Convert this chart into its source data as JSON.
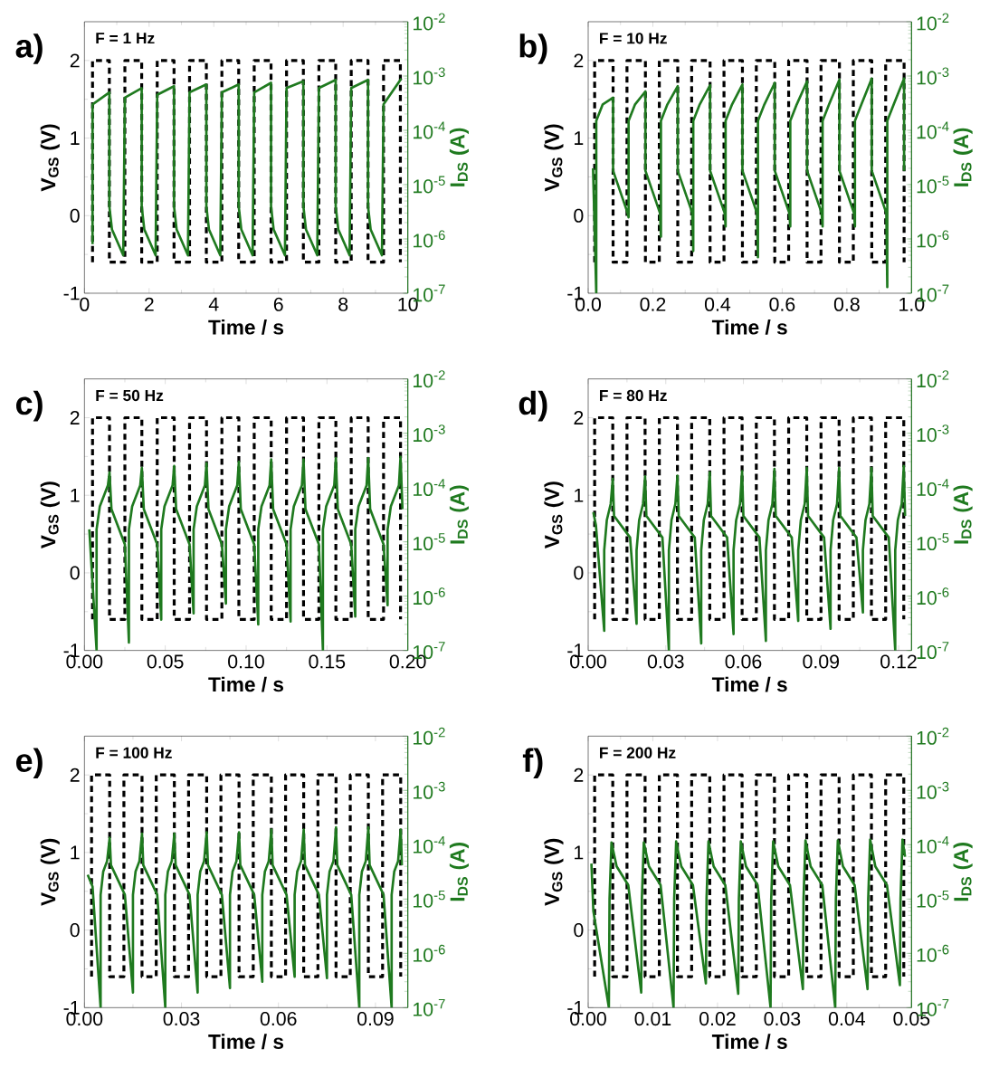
{
  "chart_data": [
    {
      "type": "line",
      "title": "a)",
      "annotations": [
        "F = 1 Hz"
      ],
      "xlabel": "Time / s",
      "ylabel": "V$_{GS}$ (V)",
      "y2label": "I$_{DS}$ (A)",
      "log": "y2",
      "xlim": [
        0,
        10
      ],
      "xticks": [
        0,
        2,
        4,
        6,
        8,
        10
      ],
      "ylim": [
        -1,
        2.5
      ],
      "yticks": [
        -1,
        0,
        1,
        2
      ],
      "y2lim": [
        1e-07,
        0.01
      ],
      "y2ticks": [
        {
          "value": 1e-07,
          "label": "10$^{-7}$"
        },
        {
          "value": 1e-06,
          "label": "10$^{-6}$"
        },
        {
          "value": 1e-05,
          "label": "10$^{-5}$"
        },
        {
          "value": 0.0001,
          "label": "10$^{-4}$"
        },
        {
          "value": 0.001,
          "label": "10$^{-3}$"
        },
        {
          "value": 0.01,
          "label": "10$^{-2}$"
        }
      ],
      "series": [
        {
          "color": "#000000",
          "line_style": "dashed",
          "x": [
            0.25,
            0.25,
            0.77,
            0.77,
            1.25,
            1.25,
            1.77,
            1.77,
            2.25,
            2.25,
            2.77,
            2.77,
            3.25,
            3.25,
            3.77,
            3.77,
            4.25,
            4.25,
            4.77,
            4.77,
            5.25,
            5.25,
            5.77,
            5.77,
            6.25,
            6.25,
            6.77,
            6.77,
            7.25,
            7.25,
            7.77,
            7.77,
            8.25,
            8.25,
            8.77,
            8.77,
            9.25,
            9.25,
            9.77,
            9.77
          ],
          "values": [
            -0.6,
            2,
            2,
            -0.6,
            -0.6,
            2,
            2,
            -0.6,
            -0.6,
            2,
            2,
            -0.6,
            -0.6,
            2,
            2,
            -0.6,
            -0.6,
            2,
            2,
            -0.6,
            -0.6,
            2,
            2,
            -0.6,
            -0.6,
            2,
            2,
            -0.6,
            -0.6,
            2,
            2,
            -0.6,
            -0.6,
            2,
            2,
            -0.6,
            -0.6,
            2,
            2,
            -0.6
          ]
        },
        {
          "color": "#1f7a1f",
          "line_style": "solid",
          "axis": "y2",
          "x": [
            0.25,
            0.25,
            0.77,
            0.77,
            0.85,
            1.2,
            1.25,
            1.77,
            1.77,
            1.85,
            2.2,
            2.25,
            2.77,
            2.77,
            2.85,
            3.2,
            3.25,
            3.77,
            3.77,
            3.85,
            4.2,
            4.25,
            4.77,
            4.77,
            4.85,
            5.2,
            5.25,
            5.77,
            5.77,
            5.85,
            6.2,
            6.25,
            6.77,
            6.77,
            6.85,
            7.2,
            7.25,
            7.77,
            7.77,
            7.85,
            8.2,
            8.25,
            8.77,
            8.77,
            8.85,
            9.2,
            9.25,
            9.8
          ],
          "values": [
            8e-07,
            0.0003,
            0.0005,
            4e-06,
            1.5e-06,
            5e-07,
            0.0004,
            0.0006,
            4e-06,
            1.5e-06,
            5e-07,
            0.00045,
            0.00065,
            4e-06,
            1.5e-06,
            5e-07,
            0.0005,
            0.0007,
            4e-06,
            1.5e-06,
            5e-07,
            0.0005,
            0.0007,
            4e-06,
            1.5e-06,
            5e-07,
            0.0005,
            0.00075,
            4e-06,
            1.5e-06,
            5e-07,
            0.0006,
            0.0008,
            4e-06,
            1.5e-06,
            5e-07,
            0.0006,
            0.00085,
            4e-06,
            1.5e-06,
            5e-07,
            0.0006,
            0.00085,
            4e-06,
            1.5e-06,
            5e-07,
            0.0003,
            0.0009
          ]
        }
      ]
    },
    {
      "type": "line",
      "title": "b)",
      "annotations": [
        "F = 10 Hz"
      ],
      "xlabel": "Time / s",
      "ylabel": "V$_{GS}$ (V)",
      "y2label": "I$_{DS}$ (A)",
      "log": "y2",
      "xlim": [
        0,
        1
      ],
      "xticks": [
        {
          "value": 0,
          "label": "0.0"
        },
        0.2,
        0.4,
        0.6,
        0.8,
        {
          "value": 1,
          "label": "1.0"
        }
      ],
      "ylim": [
        -1,
        2.5
      ],
      "yticks": [
        -1,
        0,
        1,
        2
      ],
      "y2lim": [
        1e-07,
        0.01
      ],
      "y2ticks": [
        {
          "value": 1e-07,
          "label": "10$^{-7}$"
        },
        {
          "value": 1e-06,
          "label": "10$^{-6}$"
        },
        {
          "value": 1e-05,
          "label": "10$^{-5}$"
        },
        {
          "value": 0.0001,
          "label": "10$^{-4}$"
        },
        {
          "value": 0.001,
          "label": "10$^{-3}$"
        },
        {
          "value": 0.01,
          "label": "10$^{-2}$"
        }
      ],
      "series": [
        {
          "color": "#000000",
          "line_style": "dashed",
          "x": [
            0.02,
            0.02,
            0.077,
            0.077,
            0.12,
            0.12,
            0.177,
            0.177,
            0.22,
            0.22,
            0.277,
            0.277,
            0.32,
            0.32,
            0.377,
            0.377,
            0.42,
            0.42,
            0.477,
            0.477,
            0.52,
            0.52,
            0.577,
            0.577,
            0.62,
            0.62,
            0.677,
            0.677,
            0.72,
            0.72,
            0.777,
            0.777,
            0.82,
            0.82,
            0.877,
            0.877,
            0.92,
            0.92,
            0.977,
            0.977
          ],
          "values": [
            -0.6,
            2,
            2,
            -0.6,
            -0.6,
            2,
            2,
            -0.6,
            -0.6,
            2,
            2,
            -0.6,
            -0.6,
            2,
            2,
            -0.6,
            -0.6,
            2,
            2,
            -0.6,
            -0.6,
            2,
            2,
            -0.6,
            -0.6,
            2,
            2,
            -0.6,
            -0.6,
            2,
            2,
            -0.6,
            -0.6,
            2,
            2,
            -0.6,
            -0.6,
            2,
            2,
            -0.6
          ]
        },
        {
          "color": "#1f7a1f",
          "line_style": "solid",
          "axis": "y2",
          "x": [
            0.015,
            0.025,
            0.025,
            0.045,
            0.077,
            0.077,
            0.122,
            0.125,
            0.125,
            0.145,
            0.177,
            0.177,
            0.222,
            0.225,
            0.225,
            0.245,
            0.277,
            0.277,
            0.322,
            0.325,
            0.325,
            0.345,
            0.377,
            0.377,
            0.422,
            0.425,
            0.425,
            0.445,
            0.477,
            0.477,
            0.522,
            0.525,
            0.525,
            0.545,
            0.577,
            0.577,
            0.622,
            0.625,
            0.625,
            0.645,
            0.677,
            0.677,
            0.722,
            0.725,
            0.725,
            0.745,
            0.777,
            0.777,
            0.822,
            0.825,
            0.825,
            0.845,
            0.877,
            0.877,
            0.922,
            0.925,
            0.925,
            0.945,
            0.977,
            0.977
          ],
          "values": [
            2e-05,
            1e-07,
            0.00015,
            0.0003,
            0.0004,
            1.8e-05,
            3e-06,
            2.5e-06,
            0.00015,
            0.0003,
            0.00052,
            1.8e-05,
            3e-06,
            1.1e-06,
            0.00015,
            0.0003,
            0.00065,
            1.8e-05,
            3e-06,
            6e-07,
            0.00015,
            0.0003,
            0.00068,
            1.8e-05,
            3e-06,
            1.7e-06,
            0.00015,
            0.0003,
            0.0007,
            1.8e-05,
            3e-06,
            4.6e-07,
            0.00015,
            0.0003,
            0.00075,
            1.8e-05,
            3e-06,
            1.7e-06,
            0.00015,
            0.0003,
            0.0008,
            1.8e-05,
            3e-06,
            1.7e-06,
            0.00015,
            0.0003,
            0.00086,
            1.8e-05,
            3e-06,
            1.7e-06,
            0.00015,
            0.0003,
            0.0009,
            1.8e-05,
            3e-06,
            1.3e-07,
            0.00015,
            0.0003,
            0.0009,
            1.8e-05
          ]
        }
      ]
    },
    {
      "type": "line",
      "title": "c)",
      "annotations": [
        "F = 50 Hz"
      ],
      "xlabel": "Time / s",
      "ylabel": "V$_{GS}$ (V)",
      "y2label": "I$_{DS}$ (A)",
      "log": "y2",
      "xlim": [
        0,
        0.2
      ],
      "xticks": [
        {
          "value": 0,
          "label": "0.00"
        },
        0.05,
        {
          "value": 0.1,
          "label": "0.10"
        },
        0.15,
        {
          "value": 0.2,
          "label": "0.20"
        }
      ],
      "ylim": [
        -1,
        2.5
      ],
      "yticks": [
        -1,
        0,
        1,
        2
      ],
      "y2lim": [
        1e-07,
        0.01
      ],
      "y2ticks": [
        {
          "value": 1e-07,
          "label": "10$^{-7}$"
        },
        {
          "value": 1e-06,
          "label": "10$^{-6}$"
        },
        {
          "value": 1e-05,
          "label": "10$^{-5}$"
        },
        {
          "value": 0.0001,
          "label": "10$^{-4}$"
        },
        {
          "value": 0.001,
          "label": "10$^{-3}$"
        },
        {
          "value": 0.01,
          "label": "10$^{-2}$"
        }
      ],
      "series": [
        {
          "color": "#000000",
          "line_style": "dashed",
          "x": [
            0.005,
            0.005,
            0.0155,
            0.0155,
            0.025,
            0.025,
            0.0355,
            0.0355,
            0.045,
            0.045,
            0.0555,
            0.0555,
            0.065,
            0.065,
            0.0755,
            0.0755,
            0.085,
            0.085,
            0.0955,
            0.0955,
            0.105,
            0.105,
            0.1155,
            0.1155,
            0.125,
            0.125,
            0.1355,
            0.1355,
            0.145,
            0.145,
            0.1555,
            0.1555,
            0.165,
            0.165,
            0.1755,
            0.1755,
            0.185,
            0.185,
            0.1955,
            0.1955
          ],
          "values": [
            -0.6,
            2,
            2,
            -0.6,
            -0.6,
            2,
            2,
            -0.6,
            -0.6,
            2,
            2,
            -0.6,
            -0.6,
            2,
            2,
            -0.6,
            -0.6,
            2,
            2,
            -0.6,
            -0.6,
            2,
            2,
            -0.6,
            -0.6,
            2,
            2,
            -0.6,
            -0.6,
            2,
            2,
            -0.6,
            -0.6,
            2,
            2,
            -0.6,
            -0.6,
            2,
            2,
            -0.6
          ]
        },
        {
          "color": "#1f7a1f",
          "line_style": "solid",
          "axis": "y2",
          "x": [
            0.003,
            0.0075,
            0.0075,
            0.0095,
            0.0145,
            0.0155,
            0.0167,
            0.025,
            0.0275,
            0.0275,
            0.0295,
            0.0345,
            0.0355,
            0.0367,
            0.045,
            0.0475,
            0.0475,
            0.0495,
            0.0545,
            0.0555,
            0.0567,
            0.065,
            0.0675,
            0.0675,
            0.0695,
            0.0745,
            0.0755,
            0.0767,
            0.085,
            0.0875,
            0.0875,
            0.0895,
            0.0945,
            0.0955,
            0.0967,
            0.105,
            0.1075,
            0.1075,
            0.1095,
            0.1145,
            0.1155,
            0.1167,
            0.125,
            0.1275,
            0.1275,
            0.1295,
            0.1345,
            0.1355,
            0.1367,
            0.145,
            0.1475,
            0.1475,
            0.1495,
            0.1545,
            0.1555,
            0.1567,
            0.165,
            0.1675,
            0.1675,
            0.1695,
            0.1745,
            0.1755,
            0.1767,
            0.185,
            0.1875,
            0.1875,
            0.1895,
            0.1945,
            0.1955,
            0.1967
          ],
          "values": [
            1.7e-05,
            1e-07,
            1.7e-05,
            4.5e-05,
            0.00011,
            0.00019,
            4e-05,
            9e-06,
            1.4e-07,
            1.7e-05,
            4.5e-05,
            0.00011,
            0.00023,
            4e-05,
            9e-06,
            3.7e-07,
            1.7e-05,
            4.5e-05,
            0.00011,
            0.00025,
            4e-05,
            9e-06,
            4.8e-07,
            1.7e-05,
            4.5e-05,
            0.00011,
            0.00028,
            4e-05,
            9e-06,
            7.3e-07,
            1.7e-05,
            4.5e-05,
            0.00011,
            0.0003,
            4e-05,
            9e-06,
            3e-07,
            1.7e-05,
            4.5e-05,
            0.00011,
            0.00033,
            4e-05,
            9e-06,
            3.4e-07,
            1.7e-05,
            4.5e-05,
            0.00011,
            0.00033,
            4e-05,
            9e-06,
            1e-07,
            1.7e-05,
            4.5e-05,
            0.00011,
            0.00035,
            4e-05,
            9e-06,
            4.2e-07,
            1.7e-05,
            4.5e-05,
            0.00011,
            0.00035,
            4e-05,
            9e-06,
            6.8e-07,
            1.7e-05,
            4.5e-05,
            0.00011,
            0.00037,
            4e-05
          ]
        }
      ]
    },
    {
      "type": "line",
      "title": "d)",
      "annotations": [
        "F = 80 Hz"
      ],
      "xlabel": "Time / s",
      "ylabel": "V$_{GS}$ (V)",
      "y2label": "I$_{DS}$ (A)",
      "log": "y2",
      "xlim": [
        0,
        0.125
      ],
      "xticks": [
        {
          "value": 0,
          "label": "0.00"
        },
        0.03,
        0.06,
        0.09,
        0.12
      ],
      "ylim": [
        -1,
        2.5
      ],
      "yticks": [
        -1,
        0,
        1,
        2
      ],
      "y2lim": [
        1e-07,
        0.01
      ],
      "y2ticks": [
        {
          "value": 1e-07,
          "label": "10$^{-7}$"
        },
        {
          "value": 1e-06,
          "label": "10$^{-6}$"
        },
        {
          "value": 1e-05,
          "label": "10$^{-5}$"
        },
        {
          "value": 0.0001,
          "label": "10$^{-4}$"
        },
        {
          "value": 0.001,
          "label": "10$^{-3}$"
        },
        {
          "value": 0.01,
          "label": "10$^{-2}$"
        }
      ],
      "series": [
        {
          "color": "#000000",
          "line_style": "dashed",
          "x": [
            0.0025,
            0.0025,
            0.0095,
            0.0095,
            0.015,
            0.015,
            0.022,
            0.022,
            0.0275,
            0.0275,
            0.0345,
            0.0345,
            0.04,
            0.04,
            0.047,
            0.047,
            0.0525,
            0.0525,
            0.0595,
            0.0595,
            0.065,
            0.065,
            0.072,
            0.072,
            0.0775,
            0.0775,
            0.0845,
            0.0845,
            0.09,
            0.09,
            0.097,
            0.097,
            0.1025,
            0.1025,
            0.1095,
            0.1095,
            0.115,
            0.115,
            0.122,
            0.122
          ],
          "values": [
            -0.6,
            2,
            2,
            -0.6,
            -0.6,
            2,
            2,
            -0.6,
            -0.6,
            2,
            2,
            -0.6,
            -0.6,
            2,
            2,
            -0.6,
            -0.6,
            2,
            2,
            -0.6,
            -0.6,
            2,
            2,
            -0.6,
            -0.6,
            2,
            2,
            -0.6,
            -0.6,
            2,
            2,
            -0.6,
            -0.6,
            2,
            2,
            -0.6,
            -0.6,
            2,
            2,
            -0.6
          ]
        },
        {
          "color": "#1f7a1f",
          "line_style": "solid",
          "axis": "y2",
          "x": [
            0.002,
            0.003,
            0.0062,
            0.0062,
            0.0072,
            0.0087,
            0.0095,
            0.01,
            0.0162,
            0.0187,
            0.0187,
            0.0197,
            0.0212,
            0.022,
            0.0225,
            0.0287,
            0.0312,
            0.0312,
            0.0322,
            0.0337,
            0.0345,
            0.035,
            0.0412,
            0.0437,
            0.0437,
            0.0447,
            0.0462,
            0.047,
            0.0475,
            0.0537,
            0.0562,
            0.0562,
            0.0572,
            0.0587,
            0.0595,
            0.06,
            0.0662,
            0.0687,
            0.0687,
            0.0697,
            0.0712,
            0.072,
            0.0725,
            0.0787,
            0.0812,
            0.0812,
            0.0822,
            0.0837,
            0.0845,
            0.085,
            0.0912,
            0.0937,
            0.0937,
            0.0947,
            0.0962,
            0.097,
            0.0975,
            0.1037,
            0.1062,
            0.1062,
            0.1072,
            0.1087,
            0.1095,
            0.11,
            0.1162,
            0.1187,
            0.1187,
            0.1197,
            0.1212,
            0.122,
            0.1225
          ],
          "values": [
            3.5e-05,
            2e-05,
            2.3e-07,
            7e-06,
            2.5e-05,
            5e-05,
            0.000145,
            3e-05,
            1.2e-05,
            3.1e-07,
            7e-06,
            2.5e-05,
            5e-05,
            0.00016,
            3e-05,
            1.2e-05,
            1e-07,
            7e-06,
            2.5e-05,
            5e-05,
            0.000165,
            3e-05,
            1.2e-05,
            1.35e-07,
            7e-06,
            2.5e-05,
            5e-05,
            0.00019,
            3e-05,
            1.2e-05,
            2e-07,
            7e-06,
            2.5e-05,
            5e-05,
            0.0002,
            3e-05,
            1.2e-05,
            1.5e-07,
            7e-06,
            2.5e-05,
            5e-05,
            0.00022,
            3e-05,
            1.2e-05,
            3.5e-07,
            7e-06,
            2.5e-05,
            5e-05,
            0.00023,
            3e-05,
            1.2e-05,
            2.5e-07,
            7e-06,
            2.5e-05,
            5e-05,
            0.00023,
            3e-05,
            1.2e-05,
            5e-07,
            7e-06,
            2.5e-05,
            5e-05,
            0.00023,
            3e-05,
            1.2e-05,
            1e-07,
            7e-06,
            2.5e-05,
            5e-05,
            0.00025,
            3e-05
          ]
        }
      ]
    },
    {
      "type": "line",
      "title": "e)",
      "annotations": [
        "F = 100 Hz"
      ],
      "xlabel": "Time / s",
      "ylabel": "V$_{GS}$ (V)",
      "y2label": "I$_{DS}$ (A)",
      "log": "y2",
      "xlim": [
        0,
        0.1
      ],
      "xticks": [
        {
          "value": 0,
          "label": "0.00"
        },
        0.03,
        0.06,
        0.09
      ],
      "ylim": [
        -1,
        2.5
      ],
      "yticks": [
        -1,
        0,
        1,
        2
      ],
      "y2lim": [
        1e-07,
        0.01
      ],
      "y2ticks": [
        {
          "value": 1e-07,
          "label": "10$^{-7}$"
        },
        {
          "value": 1e-06,
          "label": "10$^{-6}$"
        },
        {
          "value": 1e-05,
          "label": "10$^{-5}$"
        },
        {
          "value": 0.0001,
          "label": "10$^{-4}$"
        },
        {
          "value": 0.001,
          "label": "10$^{-3}$"
        },
        {
          "value": 0.01,
          "label": "10$^{-2}$"
        }
      ],
      "series": [
        {
          "color": "#000000",
          "line_style": "dashed",
          "x": [
            0.0022,
            0.0022,
            0.0078,
            0.0078,
            0.0122,
            0.0122,
            0.0178,
            0.0178,
            0.0222,
            0.0222,
            0.0278,
            0.0278,
            0.0322,
            0.0322,
            0.0378,
            0.0378,
            0.0422,
            0.0422,
            0.0478,
            0.0478,
            0.0522,
            0.0522,
            0.0578,
            0.0578,
            0.0622,
            0.0622,
            0.0678,
            0.0678,
            0.0722,
            0.0722,
            0.0778,
            0.0778,
            0.0822,
            0.0822,
            0.0878,
            0.0878,
            0.0922,
            0.0922,
            0.0978,
            0.0978
          ],
          "values": [
            -0.6,
            2,
            2,
            -0.6,
            -0.6,
            2,
            2,
            -0.6,
            -0.6,
            2,
            2,
            -0.6,
            -0.6,
            2,
            2,
            -0.6,
            -0.6,
            2,
            2,
            -0.6,
            -0.6,
            2,
            2,
            -0.6,
            -0.6,
            2,
            2,
            -0.6,
            -0.6,
            2,
            2,
            -0.6,
            -0.6,
            2,
            2,
            -0.6,
            -0.6,
            2,
            2,
            -0.6
          ]
        },
        {
          "color": "#1f7a1f",
          "line_style": "solid",
          "axis": "y2",
          "x": [
            0.001,
            0.0025,
            0.005,
            0.005,
            0.0058,
            0.007,
            0.0078,
            0.0082,
            0.0125,
            0.015,
            0.015,
            0.0158,
            0.017,
            0.0178,
            0.0182,
            0.0225,
            0.025,
            0.025,
            0.0258,
            0.027,
            0.0278,
            0.0282,
            0.0325,
            0.035,
            0.035,
            0.0358,
            0.037,
            0.0378,
            0.0382,
            0.0425,
            0.045,
            0.045,
            0.0458,
            0.047,
            0.0478,
            0.0482,
            0.0525,
            0.055,
            0.055,
            0.0558,
            0.057,
            0.0578,
            0.0582,
            0.0625,
            0.065,
            0.065,
            0.0658,
            0.067,
            0.0678,
            0.0682,
            0.0725,
            0.075,
            0.075,
            0.0758,
            0.077,
            0.0778,
            0.0782,
            0.0825,
            0.085,
            0.085,
            0.0858,
            0.087,
            0.0878,
            0.0882,
            0.0925,
            0.095,
            0.095,
            0.0958,
            0.097,
            0.0978,
            0.0982
          ],
          "values": [
            2.8e-05,
            1.7e-05,
            1e-07,
            1.2e-05,
            3.2e-05,
            5e-05,
            0.000135,
            4.2e-05,
            1.2e-05,
            1.9e-07,
            1.2e-05,
            3.2e-05,
            5e-05,
            0.00016,
            4.2e-05,
            1.2e-05,
            1e-07,
            1.2e-05,
            3.2e-05,
            5e-05,
            0.00016,
            4.2e-05,
            1.2e-05,
            1.9e-07,
            1.2e-05,
            3.2e-05,
            5e-05,
            0.00017,
            4.2e-05,
            1.2e-05,
            2.3e-07,
            1.2e-05,
            3.2e-05,
            5e-05,
            0.00017,
            4.2e-05,
            1.2e-05,
            3e-07,
            1.2e-05,
            3.2e-05,
            5e-05,
            0.00019,
            4.2e-05,
            1.2e-05,
            3.7e-07,
            1.2e-05,
            3.2e-05,
            5e-05,
            0.00019,
            4.2e-05,
            1.2e-05,
            3.5e-07,
            1.2e-05,
            3.2e-05,
            5e-05,
            0.00021,
            4.2e-05,
            1.2e-05,
            1e-07,
            1.2e-05,
            3.2e-05,
            5e-05,
            0.00021,
            4.2e-05,
            1.2e-05,
            1e-07,
            1.2e-05,
            3.2e-05,
            5e-05,
            0.00019,
            4.2e-05
          ]
        }
      ]
    },
    {
      "type": "line",
      "title": "f)",
      "annotations": [
        "F = 200 Hz"
      ],
      "xlabel": "Time / s",
      "ylabel": "V$_{GS}$ (V)",
      "y2label": "I$_{DS}$ (A)",
      "log": "y2",
      "xlim": [
        0,
        0.05
      ],
      "xticks": [
        {
          "value": 0,
          "label": "0.00"
        },
        0.01,
        0.02,
        0.03,
        0.04,
        0.05
      ],
      "ylim": [
        -1,
        2.5
      ],
      "yticks": [
        -1,
        0,
        1,
        2
      ],
      "y2lim": [
        1e-07,
        0.01
      ],
      "y2ticks": [
        {
          "value": 1e-07,
          "label": "10$^{-7}$"
        },
        {
          "value": 1e-06,
          "label": "10$^{-6}$"
        },
        {
          "value": 1e-05,
          "label": "10$^{-5}$"
        },
        {
          "value": 0.0001,
          "label": "10$^{-4}$"
        },
        {
          "value": 0.001,
          "label": "10$^{-3}$"
        },
        {
          "value": 0.01,
          "label": "10$^{-2}$"
        }
      ],
      "series": [
        {
          "color": "#000000",
          "line_style": "dashed",
          "x": [
            0.001,
            0.001,
            0.0038,
            0.0038,
            0.006,
            0.006,
            0.0088,
            0.0088,
            0.011,
            0.011,
            0.0138,
            0.0138,
            0.016,
            0.016,
            0.0188,
            0.0188,
            0.021,
            0.021,
            0.0238,
            0.0238,
            0.026,
            0.026,
            0.0288,
            0.0288,
            0.031,
            0.031,
            0.0338,
            0.0338,
            0.036,
            0.036,
            0.0388,
            0.0388,
            0.041,
            0.041,
            0.0438,
            0.0438,
            0.046,
            0.046,
            0.0488,
            0.0488
          ],
          "values": [
            -0.6,
            2,
            2,
            -0.6,
            -0.6,
            2,
            2,
            -0.6,
            -0.6,
            2,
            2,
            -0.6,
            -0.6,
            2,
            2,
            -0.6,
            -0.6,
            2,
            2,
            -0.6,
            -0.6,
            2,
            2,
            -0.6,
            -0.6,
            2,
            2,
            -0.6,
            -0.6,
            2,
            2,
            -0.6,
            -0.6,
            2,
            2,
            -0.6,
            -0.6,
            2,
            2,
            -0.6
          ]
        },
        {
          "color": "#1f7a1f",
          "line_style": "solid",
          "axis": "y2",
          "x": [
            0.0005,
            0.0008,
            0.0032,
            0.0033,
            0.0036,
            0.0044,
            0.0062,
            0.0082,
            0.0083,
            0.0086,
            0.0094,
            0.0112,
            0.0132,
            0.0133,
            0.0136,
            0.0144,
            0.0162,
            0.0182,
            0.0183,
            0.0186,
            0.0194,
            0.0212,
            0.0232,
            0.0233,
            0.0236,
            0.0244,
            0.0262,
            0.0282,
            0.0283,
            0.0286,
            0.0294,
            0.0312,
            0.0332,
            0.0333,
            0.0336,
            0.0344,
            0.0362,
            0.0382,
            0.0383,
            0.0386,
            0.0394,
            0.0412,
            0.0432,
            0.0433,
            0.0436,
            0.0444,
            0.0462,
            0.0482,
            0.0483,
            0.0486,
            0.049
          ],
          "values": [
            4.5e-05,
            6e-06,
            1e-07,
            1e-05,
            0.00011,
            4e-05,
            1.8e-05,
            1.9e-07,
            1e-05,
            0.00011,
            4e-05,
            1.8e-05,
            1e-07,
            1e-05,
            0.000115,
            4e-05,
            1.8e-05,
            2.8e-07,
            1e-05,
            0.000115,
            4e-05,
            1.8e-05,
            1.8e-07,
            1e-05,
            0.000115,
            4e-05,
            1.8e-05,
            1e-07,
            1e-05,
            0.000115,
            4e-05,
            1.8e-05,
            2.2e-07,
            1e-05,
            0.00012,
            4e-05,
            1.8e-05,
            1e-07,
            1e-05,
            0.00012,
            4e-05,
            1.8e-05,
            2.2e-07,
            1e-05,
            0.000125,
            4e-05,
            1.8e-05,
            2.6e-07,
            1e-05,
            0.000125,
            6e-05
          ]
        }
      ]
    }
  ]
}
